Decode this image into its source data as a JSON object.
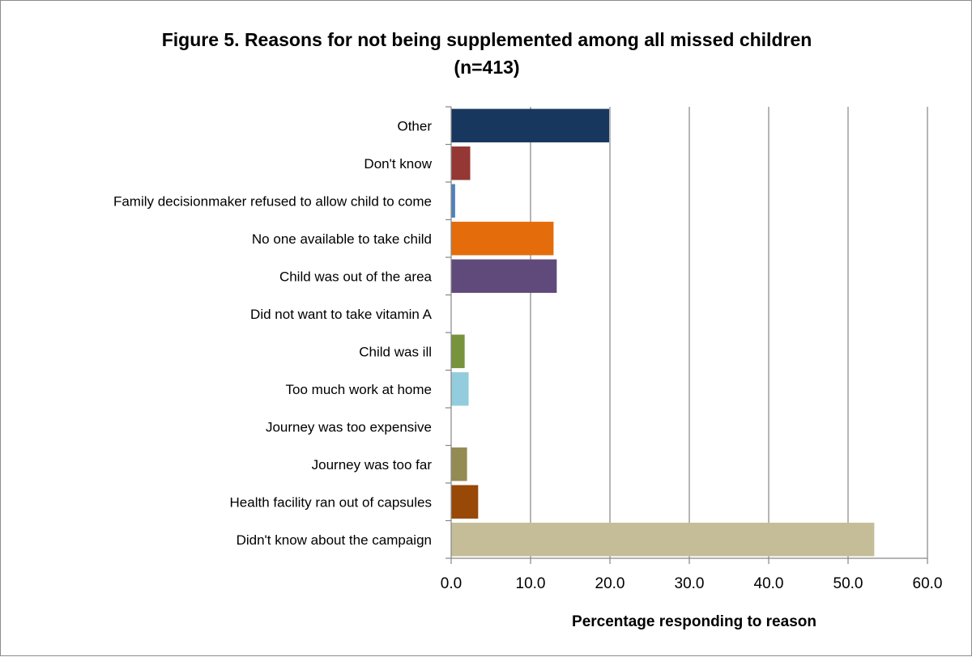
{
  "chart_data": {
    "type": "bar",
    "orientation": "horizontal",
    "title_lines": [
      "Figure 5. Reasons for not being supplemented among all missed children",
      "(n=413)"
    ],
    "xlabel": "Percentage responding to reason",
    "ylabel": "",
    "xlim": [
      0,
      60
    ],
    "x_ticks": [
      "0.0",
      "10.0",
      "20.0",
      "30.0",
      "40.0",
      "50.0",
      "60.0"
    ],
    "grid": "vertical major gridlines",
    "legend": "none",
    "categories": [
      "Other",
      "Don't know",
      "Family decisionmaker refused to allow child to come",
      "No one available to take child",
      "Child was out of the area",
      "Did not want to take vitamin A",
      "Child was ill",
      "Too much work at home",
      "Journey was too expensive",
      "Journey was too far",
      "Health facility ran out of capsules",
      "Didn't know about the campaign"
    ],
    "values": [
      19.9,
      2.4,
      0.5,
      12.9,
      13.3,
      0,
      1.7,
      2.2,
      0,
      2.0,
      3.4,
      53.3
    ],
    "colors": [
      "#17375e",
      "#953735",
      "#4f81bd",
      "#e46c0a",
      "#604a7b",
      "#4bacc6",
      "#77933c",
      "#93cddd",
      "#c0504d",
      "#948a54",
      "#984807",
      "#c4bd97"
    ]
  }
}
